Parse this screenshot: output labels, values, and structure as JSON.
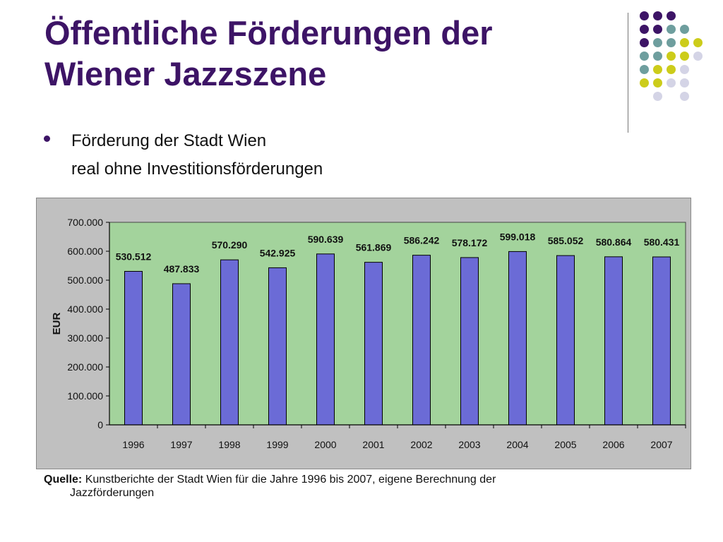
{
  "slide": {
    "title_line1": "Öffentliche Förderungen der",
    "title_line2": "Wiener Jazzszene",
    "bullet_line1": "Förderung der Stadt Wien",
    "bullet_line2": "real ohne Investitionsförderungen",
    "source_label": "Quelle:",
    "source_text": "Kunstberichte der Stadt Wien für die Jahre 1996 bis 2007, eigene Berechnung  der",
    "source_text_cont": "Jazzförderungen"
  },
  "colors": {
    "title": "#3d1466",
    "plot_bg": "#a3d39c",
    "bar_fill": "#6b6bd6",
    "bar_stroke": "#000000",
    "panel_bg": "#c0c0c0",
    "dot_purple": "#3d1466",
    "dot_teal": "#6e9e9e",
    "dot_yellow": "#cccc1a",
    "dot_lavender": "#d4d4e6"
  },
  "decor_dots": [
    [
      "dot_purple",
      "dot_purple",
      "dot_purple",
      null,
      null
    ],
    [
      "dot_purple",
      "dot_purple",
      "dot_teal",
      "dot_teal",
      null
    ],
    [
      "dot_purple",
      "dot_teal",
      "dot_teal",
      "dot_yellow",
      "dot_yellow"
    ],
    [
      "dot_teal",
      "dot_teal",
      "dot_yellow",
      "dot_yellow",
      "dot_lavender"
    ],
    [
      "dot_teal",
      "dot_yellow",
      "dot_yellow",
      "dot_lavender",
      null
    ],
    [
      "dot_yellow",
      "dot_yellow",
      "dot_lavender",
      "dot_lavender",
      null
    ],
    [
      null,
      "dot_lavender",
      null,
      "dot_lavender",
      null
    ]
  ],
  "chart_data": {
    "type": "bar",
    "title": "",
    "xlabel": "",
    "ylabel": "EUR",
    "ylim": [
      0,
      700000
    ],
    "yticks": [
      0,
      100000,
      200000,
      300000,
      400000,
      500000,
      600000,
      700000
    ],
    "ytick_labels": [
      "0",
      "100.000",
      "200.000",
      "300.000",
      "400.000",
      "500.000",
      "600.000",
      "700.000"
    ],
    "grid": false,
    "categories": [
      "1996",
      "1997",
      "1998",
      "1999",
      "2000",
      "2001",
      "2002",
      "2003",
      "2004",
      "2005",
      "2006",
      "2007"
    ],
    "values": [
      530512,
      487833,
      570290,
      542925,
      590639,
      561869,
      586242,
      578172,
      599018,
      585052,
      580864,
      580431
    ],
    "value_labels": [
      "530.512",
      "487.833",
      "570.290",
      "542.925",
      "590.639",
      "561.869",
      "586.242",
      "578.172",
      "599.018",
      "585.052",
      "580.864",
      "580.431"
    ]
  }
}
